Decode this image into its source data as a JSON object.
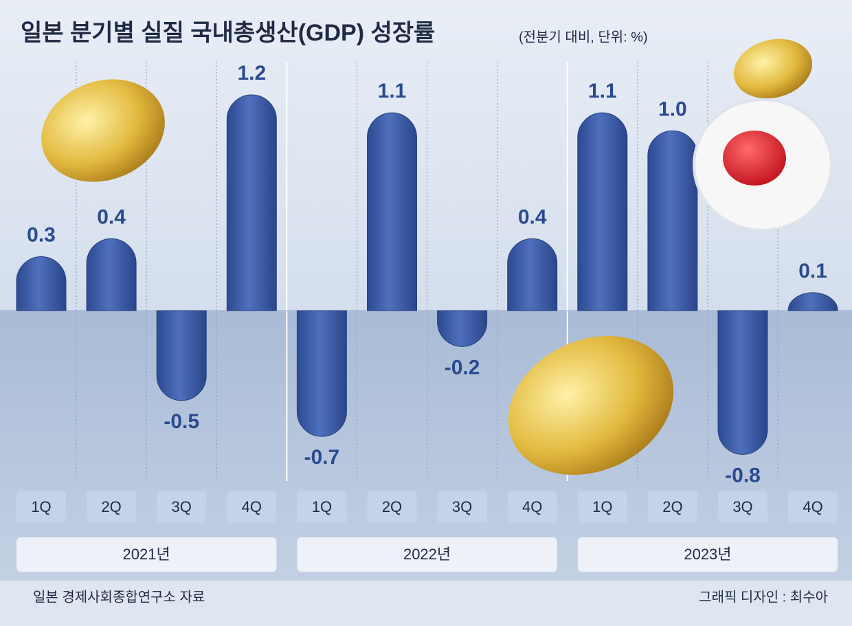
{
  "chart_data": {
    "type": "bar",
    "title": "일본 분기별 실질 국내총생산(GDP) 성장률",
    "subtitle": "(전분기 대비, 단위: %)",
    "categories": [
      "1Q",
      "2Q",
      "3Q",
      "4Q",
      "1Q",
      "2Q",
      "3Q",
      "4Q",
      "1Q",
      "2Q",
      "3Q",
      "4Q"
    ],
    "groups": [
      "2021년",
      "2022년",
      "2023년"
    ],
    "values": [
      0.3,
      0.4,
      -0.5,
      1.2,
      -0.7,
      1.1,
      -0.2,
      0.4,
      1.1,
      1.0,
      -0.8,
      0.1
    ],
    "value_labels": [
      "0.3",
      "0.4",
      "-0.5",
      "1.2",
      "-0.7",
      "1.1",
      "-0.2",
      "0.4",
      "1.1",
      "1.0",
      "-0.8",
      "0.1"
    ],
    "color": "#3d5ca8",
    "source": "일본 경제사회종합연구소 자료",
    "credit": "그래픽 디자인 : 최수아"
  }
}
